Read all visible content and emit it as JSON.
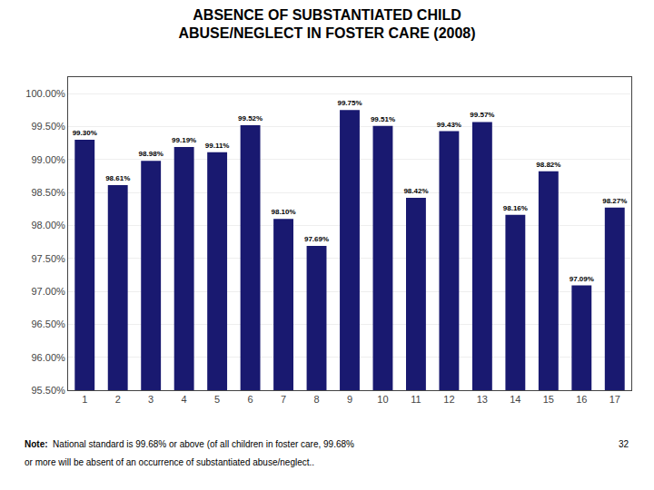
{
  "chart_data": {
    "type": "bar",
    "title": "ABSENCE OF SUBSTANTIATED CHILD\nABUSE/NEGLECT IN FOSTER CARE (2008)",
    "categories": [
      "1",
      "2",
      "3",
      "4",
      "5",
      "6",
      "7",
      "8",
      "9",
      "10",
      "11",
      "12",
      "13",
      "14",
      "15",
      "16",
      "17"
    ],
    "values": [
      99.3,
      98.61,
      98.98,
      99.19,
      99.11,
      99.52,
      98.1,
      97.69,
      99.75,
      99.51,
      98.42,
      99.43,
      99.57,
      98.16,
      98.82,
      97.09,
      98.27
    ],
    "value_labels": [
      "99.30%",
      "98.61%",
      "98.98%",
      "99.19%",
      "99.11%",
      "99.52%",
      "98.10%",
      "97.69%",
      "99.75%",
      "99.51%",
      "98.42%",
      "99.43%",
      "99.57%",
      "98.16%",
      "98.82%",
      "97.09%",
      "98.27%"
    ],
    "color": "#191970",
    "ylim": [
      95.5,
      100.25
    ],
    "yticks": [
      {
        "value": 95.5,
        "label": "95.50%"
      },
      {
        "value": 96.0,
        "label": "96.00%"
      },
      {
        "value": 96.5,
        "label": "96.50%"
      },
      {
        "value": 97.0,
        "label": "97.00%"
      },
      {
        "value": 97.5,
        "label": "97.50%"
      },
      {
        "value": 98.0,
        "label": "98.00%"
      },
      {
        "value": 98.5,
        "label": "98.50%"
      },
      {
        "value": 99.0,
        "label": "99.00%"
      },
      {
        "value": 99.5,
        "label": "99.50%"
      },
      {
        "value": 100.0,
        "label": "100.00%"
      }
    ],
    "grid": true,
    "data_labels": true,
    "annotations": [
      "Note:",
      "  National standard is 99.68% or above (of all children in foster care, 99.68%",
      "or more will be absent of an occurrence of substantiated abuse/neglect..",
      "32"
    ]
  }
}
